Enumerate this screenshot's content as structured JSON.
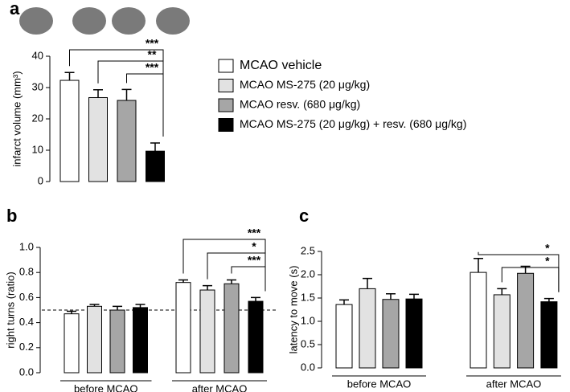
{
  "chart_data": [
    {
      "type": "bar",
      "label": "a",
      "ylabel": "infarct volume (mm³)",
      "ylim": [
        0,
        40
      ],
      "yticks": [
        0,
        10,
        20,
        30,
        40
      ],
      "series": [
        {
          "name": "MCAO vehicle",
          "color": "#ffffff",
          "values": [
            32.3
          ],
          "errors": [
            2.5
          ]
        },
        {
          "name": "MCAO MS-275 (20 μg/kg)",
          "color": "#e2e2e2",
          "values": [
            26.8
          ],
          "errors": [
            2.5
          ]
        },
        {
          "name": "MCAO resv. (680 μg/kg)",
          "color": "#a6a6a6",
          "values": [
            25.9
          ],
          "errors": [
            3.5
          ]
        },
        {
          "name": "MCAO MS-275 (20 μg/kg)  + resv. (680 μg/kg)",
          "color": "#000000",
          "values": [
            9.7
          ],
          "errors": [
            2.6
          ]
        }
      ],
      "annotations": [
        "***",
        "**",
        "***"
      ]
    },
    {
      "type": "bar",
      "label": "b",
      "ylabel": "right turns (ratio)",
      "categories": [
        "before MCAO",
        "after MCAO"
      ],
      "ylim": [
        0,
        1
      ],
      "yticks": [
        {
          "value": 0,
          "label": "0.0"
        },
        0.2,
        0.4,
        0.6,
        0.8,
        {
          "value": 1,
          "label": "1.0"
        }
      ],
      "reference_line": 0.5,
      "series": [
        {
          "color": "#ffffff",
          "values": [
            0.47,
            0.72
          ],
          "errors": [
            0.02,
            0.02
          ]
        },
        {
          "color": "#e2e2e2",
          "values": [
            0.53,
            0.66
          ],
          "errors": [
            0.015,
            0.035
          ]
        },
        {
          "color": "#a6a6a6",
          "values": [
            0.5,
            0.71
          ],
          "errors": [
            0.03,
            0.03
          ]
        },
        {
          "color": "#000000",
          "values": [
            0.52,
            0.57
          ],
          "errors": [
            0.025,
            0.03
          ]
        }
      ],
      "annotations": [
        "***",
        "*",
        "***"
      ]
    },
    {
      "type": "bar",
      "label": "c",
      "ylabel": "latency to move (s)",
      "categories": [
        "before MCAO",
        "after MCAO"
      ],
      "ylim": [
        0,
        2.5
      ],
      "yticks": [
        {
          "value": 0,
          "label": "0.0"
        },
        0.5,
        {
          "value": 1,
          "label": "1.0"
        },
        1.5,
        {
          "value": 2,
          "label": "2.0"
        },
        2.5
      ],
      "series": [
        {
          "color": "#ffffff",
          "values": [
            1.36,
            2.05
          ],
          "errors": [
            0.1,
            0.3
          ]
        },
        {
          "color": "#e2e2e2",
          "values": [
            1.7,
            1.57
          ],
          "errors": [
            0.22,
            0.13
          ]
        },
        {
          "color": "#a6a6a6",
          "values": [
            1.47,
            2.03
          ],
          "errors": [
            0.12,
            0.15
          ]
        },
        {
          "color": "#000000",
          "values": [
            1.48,
            1.42
          ],
          "errors": [
            0.1,
            0.07
          ]
        }
      ],
      "annotations": [
        "*",
        "*"
      ]
    }
  ]
}
